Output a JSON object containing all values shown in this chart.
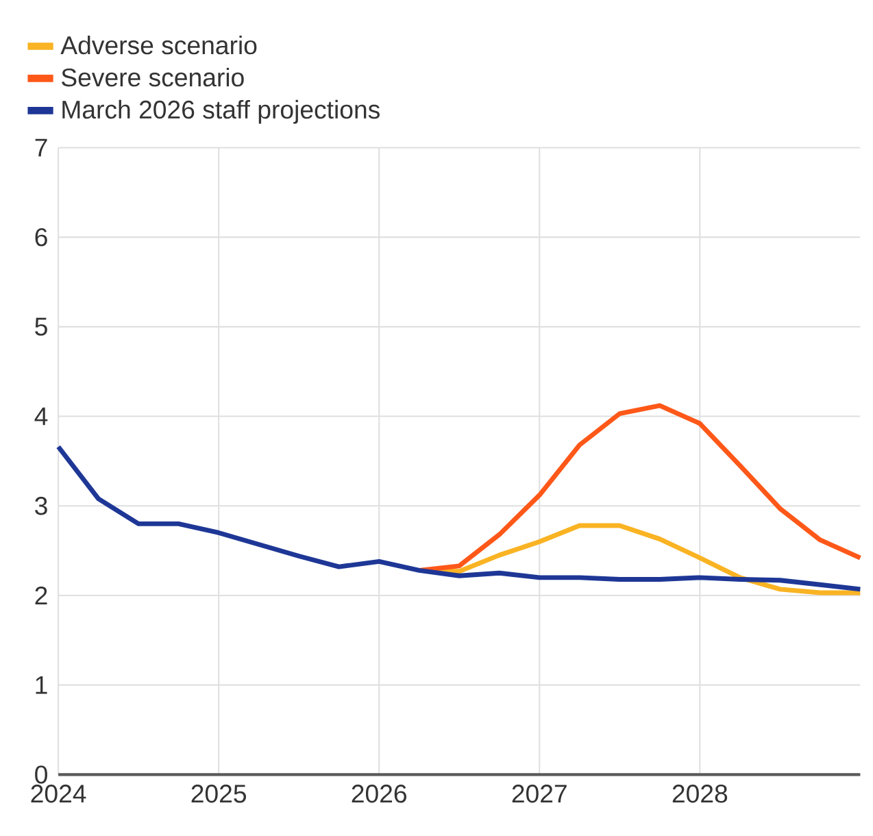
{
  "chart_data": {
    "type": "line",
    "x": [
      2024,
      2024.25,
      2024.5,
      2024.75,
      2025,
      2025.25,
      2025.5,
      2025.75,
      2026,
      2026.25,
      2026.5,
      2026.75,
      2027,
      2027.25,
      2027.5,
      2027.75,
      2028,
      2028.25,
      2028.5,
      2028.75,
      2029
    ],
    "series": [
      {
        "name": "Adverse scenario",
        "color": "#f9b323",
        "x": [
          2026.25,
          2026.5,
          2026.75,
          2027,
          2027.25,
          2027.5,
          2027.75,
          2028,
          2028.25,
          2028.5,
          2028.75,
          2029
        ],
        "values": [
          2.28,
          2.27,
          2.45,
          2.6,
          2.78,
          2.78,
          2.63,
          2.42,
          2.2,
          2.07,
          2.03,
          2.03
        ]
      },
      {
        "name": "Severe scenario",
        "color": "#fe5819",
        "x": [
          2026.25,
          2026.5,
          2026.75,
          2027,
          2027.25,
          2027.5,
          2027.75,
          2028,
          2028.25,
          2028.5,
          2028.75,
          2029
        ],
        "values": [
          2.28,
          2.33,
          2.68,
          3.12,
          3.68,
          4.03,
          4.12,
          3.92,
          3.45,
          2.97,
          2.62,
          2.42
        ]
      },
      {
        "name": "March 2026 staff projections",
        "color": "#1e3796",
        "values": [
          3.66,
          3.08,
          2.8,
          2.8,
          2.7,
          2.57,
          2.44,
          2.32,
          2.38,
          2.28,
          2.22,
          2.25,
          2.2,
          2.2,
          2.18,
          2.18,
          2.2,
          2.18,
          2.17,
          2.12,
          2.07
        ]
      }
    ],
    "xlim": [
      2024,
      2029
    ],
    "xticks": [
      2024,
      2025,
      2026,
      2027,
      2028
    ],
    "ylim": [
      0,
      7
    ],
    "yticks": [
      0,
      1,
      2,
      3,
      4,
      5,
      6,
      7
    ],
    "grid": true,
    "legend": "top left",
    "marker": "none",
    "line_style": "solid"
  }
}
